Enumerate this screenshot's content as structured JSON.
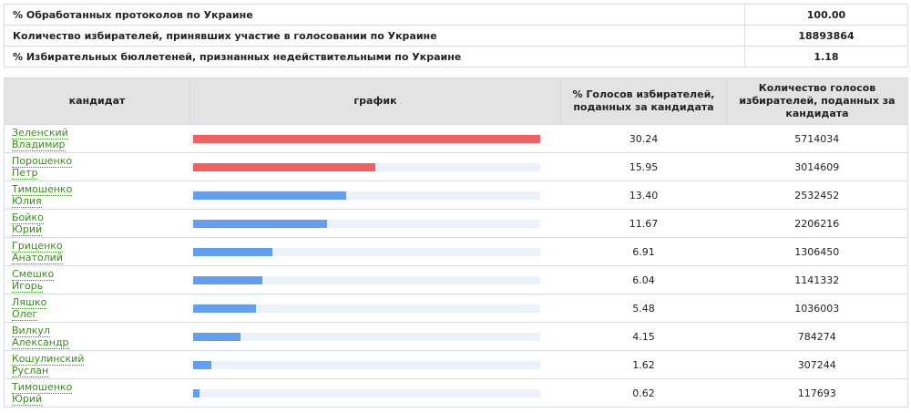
{
  "summary": {
    "rows": [
      {
        "label": "% Обработанных протоколов по Украине",
        "value": "100.00"
      },
      {
        "label": "Количество избирателей, принявших участие в голосовании по Украине",
        "value": "18893864"
      },
      {
        "label": "% Избирательных бюллетеней, признанных недействительными по Украине",
        "value": "1.18"
      }
    ]
  },
  "colors": {
    "leader": "#f06060",
    "other": "#629ff0",
    "track": "#edf2fa"
  },
  "chart_data": {
    "type": "bar",
    "columns": [
      "кандидат",
      "график",
      "% Голосов избирателей, поданных за кандидата",
      "Количество голосов избирателей, поданных за кандидата"
    ],
    "xlim": [
      0,
      30.24
    ],
    "rows": [
      {
        "first": "Зеленский",
        "second": "Владимир",
        "pct": 30.24,
        "pct_text": "30.24",
        "votes": "5714034",
        "highlight": true
      },
      {
        "first": "Порошенко",
        "second": "Петр",
        "pct": 15.95,
        "pct_text": "15.95",
        "votes": "3014609",
        "highlight": true
      },
      {
        "first": "Тимошенко",
        "second": "Юлия",
        "pct": 13.4,
        "pct_text": "13.40",
        "votes": "2532452",
        "highlight": false
      },
      {
        "first": "Бойко",
        "second": "Юрий",
        "pct": 11.67,
        "pct_text": "11.67",
        "votes": "2206216",
        "highlight": false
      },
      {
        "first": "Гриценко",
        "second": "Анатолий",
        "pct": 6.91,
        "pct_text": "6.91",
        "votes": "1306450",
        "highlight": false
      },
      {
        "first": "Смешко",
        "second": "Игорь",
        "pct": 6.04,
        "pct_text": "6.04",
        "votes": "1141332",
        "highlight": false
      },
      {
        "first": "Ляшко",
        "second": "Олег",
        "pct": 5.48,
        "pct_text": "5.48",
        "votes": "1036003",
        "highlight": false
      },
      {
        "first": "Вилкул",
        "second": "Александр",
        "pct": 4.15,
        "pct_text": "4.15",
        "votes": "784274",
        "highlight": false
      },
      {
        "first": "Кошулинский",
        "second": "Руслан",
        "pct": 1.62,
        "pct_text": "1.62",
        "votes": "307244",
        "highlight": false
      },
      {
        "first": "Тимошенко",
        "second": "Юрий",
        "pct": 0.62,
        "pct_text": "0.62",
        "votes": "117693",
        "highlight": false
      }
    ]
  }
}
